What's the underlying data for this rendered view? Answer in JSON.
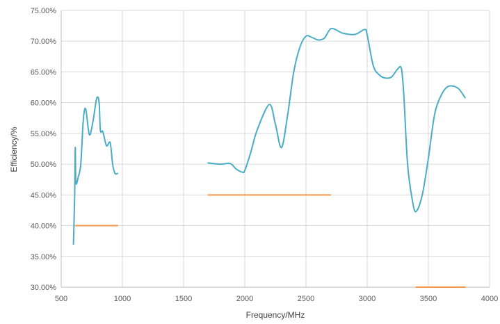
{
  "chart_data": {
    "type": "line",
    "title": "",
    "xlabel": "Frequency/MHz",
    "ylabel": "Efficiency/%",
    "xlim": [
      500,
      4000
    ],
    "ylim": [
      0.3,
      0.75
    ],
    "x_ticks": [
      500,
      1000,
      1500,
      2000,
      2500,
      3000,
      3500,
      4000
    ],
    "x_tick_labels": [
      "500",
      "1000",
      "1500",
      "2000",
      "2500",
      "3000",
      "3500",
      "4000"
    ],
    "y_ticks": [
      0.3,
      0.35,
      0.4,
      0.45,
      0.5,
      0.55,
      0.6,
      0.65,
      0.7,
      0.75
    ],
    "y_tick_labels": [
      "30.00%",
      "35.00%",
      "40.00%",
      "45.00%",
      "50.00%",
      "55.00%",
      "60.00%",
      "65.00%",
      "70.00%",
      "75.00%"
    ],
    "grid": {
      "vertical": true,
      "horizontal": true
    },
    "legend": "none",
    "colors": {
      "efficiency": "#4BACC6",
      "requirement": "#F79646",
      "grid": "#D9D9D9",
      "axis": "#BFBFBF"
    },
    "series": [
      {
        "color": "#4BACC6",
        "segments": [
          [
            [
              600,
              0.37
            ],
            [
              610,
              0.45
            ],
            [
              615,
              0.527
            ],
            [
              620,
              0.47
            ],
            [
              640,
              0.48
            ],
            [
              660,
              0.5
            ],
            [
              680,
              0.57
            ],
            [
              700,
              0.59
            ],
            [
              730,
              0.548
            ],
            [
              760,
              0.57
            ],
            [
              790,
              0.607
            ],
            [
              810,
              0.6
            ],
            [
              820,
              0.555
            ],
            [
              840,
              0.553
            ],
            [
              870,
              0.53
            ],
            [
              900,
              0.535
            ],
            [
              920,
              0.5
            ],
            [
              940,
              0.485
            ],
            [
              960,
              0.485
            ]
          ],
          [
            [
              1700,
              0.502
            ],
            [
              1800,
              0.5
            ],
            [
              1880,
              0.501
            ],
            [
              1930,
              0.492
            ],
            [
              1980,
              0.487
            ],
            [
              2000,
              0.49
            ],
            [
              2050,
              0.52
            ],
            [
              2100,
              0.555
            ],
            [
              2200,
              0.597
            ],
            [
              2250,
              0.565
            ],
            [
              2300,
              0.527
            ],
            [
              2350,
              0.58
            ],
            [
              2400,
              0.65
            ],
            [
              2450,
              0.69
            ],
            [
              2500,
              0.708
            ],
            [
              2550,
              0.706
            ],
            [
              2600,
              0.702
            ],
            [
              2650,
              0.705
            ],
            [
              2700,
              0.72
            ],
            [
              2750,
              0.718
            ],
            [
              2800,
              0.713
            ],
            [
              2900,
              0.711
            ],
            [
              2980,
              0.719
            ],
            [
              3000,
              0.71
            ],
            [
              3050,
              0.66
            ],
            [
              3100,
              0.645
            ],
            [
              3150,
              0.64
            ],
            [
              3200,
              0.642
            ],
            [
              3250,
              0.655
            ],
            [
              3280,
              0.655
            ],
            [
              3300,
              0.61
            ],
            [
              3330,
              0.5
            ],
            [
              3370,
              0.44
            ],
            [
              3400,
              0.423
            ],
            [
              3450,
              0.45
            ],
            [
              3500,
              0.51
            ],
            [
              3550,
              0.58
            ],
            [
              3600,
              0.61
            ],
            [
              3650,
              0.625
            ],
            [
              3700,
              0.627
            ],
            [
              3750,
              0.622
            ],
            [
              3800,
              0.608
            ]
          ]
        ]
      },
      {
        "color": "#F79646",
        "segments": [
          [
            [
              617,
              0.4
            ],
            [
              960,
              0.4
            ]
          ],
          [
            [
              1700,
              0.45
            ],
            [
              2700,
              0.45
            ]
          ],
          [
            [
              3400,
              0.3
            ],
            [
              3800,
              0.3
            ]
          ]
        ]
      }
    ]
  }
}
